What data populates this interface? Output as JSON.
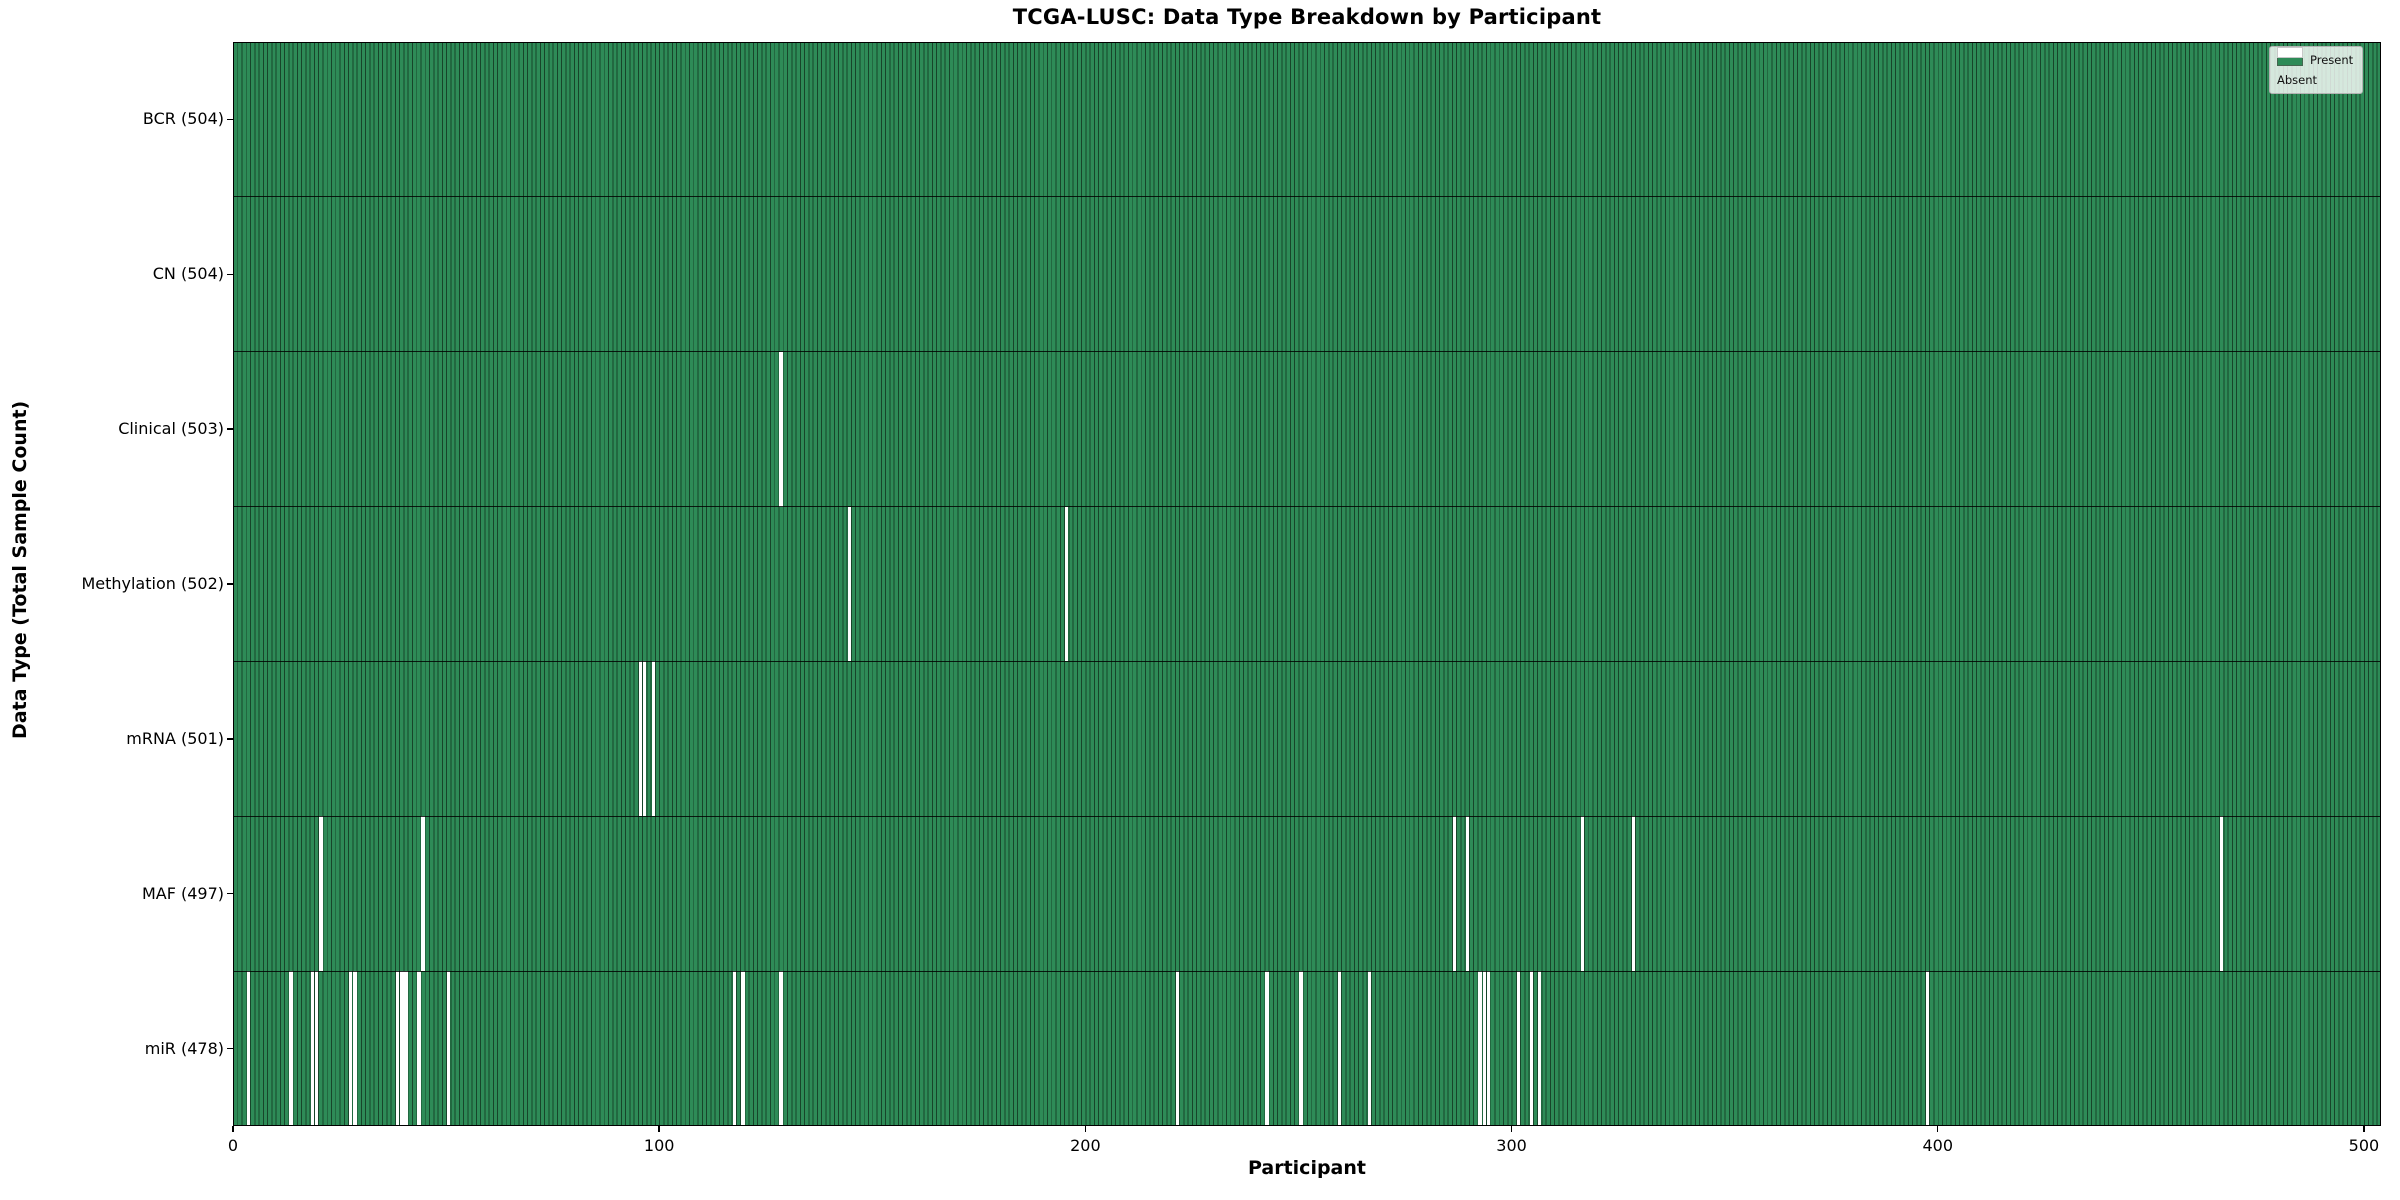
{
  "title": "TCGA-LUSC: Data Type Breakdown by Participant",
  "xlabel": "Participant",
  "ylabel": "Data Type (Total Sample Count)",
  "legend": {
    "present_label": "Present",
    "absent_label": "Absent"
  },
  "colors": {
    "present": "#2e8b57",
    "absent": "#ffffff",
    "bar_edge": "#17452a",
    "axis": "#000000"
  },
  "chart_data": {
    "type": "heatmap",
    "title": "TCGA-LUSC: Data Type Breakdown by Participant",
    "xlabel": "Participant",
    "ylabel": "Data Type (Total Sample Count)",
    "legend_entries": [
      "Present",
      "Absent"
    ],
    "legend_position": "upper right",
    "n_participants": 504,
    "xlim": [
      0,
      504
    ],
    "x_ticks": [
      0,
      100,
      200,
      300,
      400,
      500
    ],
    "grid": false,
    "rows": [
      {
        "key": "bcr",
        "label": "BCR (504)",
        "data_type": "BCR",
        "total": 504,
        "absent_participants": []
      },
      {
        "key": "cn",
        "label": "CN (504)",
        "data_type": "CN",
        "total": 504,
        "absent_participants": []
      },
      {
        "key": "clinical",
        "label": "Clinical (503)",
        "data_type": "Clinical",
        "total": 503,
        "absent_participants": [
          128
        ]
      },
      {
        "key": "methylation",
        "label": "Methylation (502)",
        "data_type": "Methylation",
        "total": 502,
        "absent_participants": [
          144,
          195
        ]
      },
      {
        "key": "mrna",
        "label": "mRNA (501)",
        "data_type": "mRNA",
        "total": 501,
        "absent_participants": [
          95,
          96,
          98
        ]
      },
      {
        "key": "maf",
        "label": "MAF (497)",
        "data_type": "MAF",
        "total": 497,
        "absent_participants": [
          20,
          44,
          286,
          289,
          316,
          328,
          466
        ]
      },
      {
        "key": "mir",
        "label": "miR (478)",
        "data_type": "miR",
        "total": 478,
        "absent_participants": [
          3,
          13,
          18,
          19,
          27,
          28,
          38,
          39,
          40,
          43,
          50,
          117,
          119,
          128,
          221,
          242,
          250,
          259,
          266,
          292,
          293,
          294,
          301,
          304,
          306,
          397
        ]
      }
    ]
  }
}
